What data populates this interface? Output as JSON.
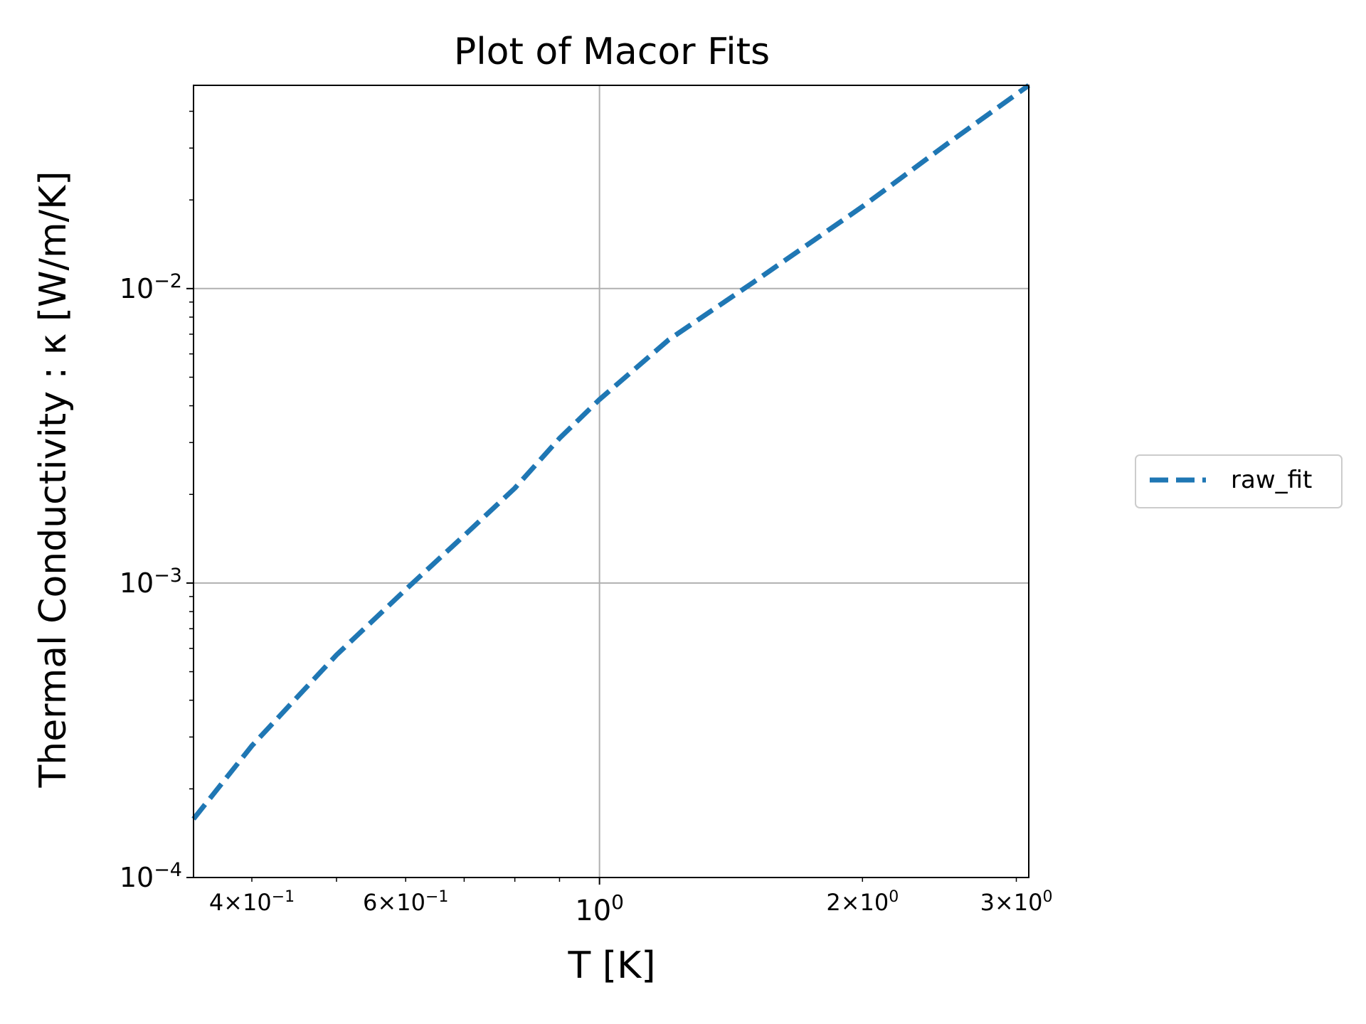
{
  "chart_data": {
    "type": "line",
    "title": "Plot of Macor Fits",
    "xlabel": "T [K]",
    "ylabel": "Thermal Conductivity : κ [W/m/K]",
    "xscale": "log",
    "yscale": "log",
    "xlim": [
      0.343,
      3.1
    ],
    "ylim": [
      0.0001,
      0.049
    ],
    "grid": true,
    "legend_position": "outside-right",
    "x_major_ticks": [
      {
        "value": 1,
        "base": "10",
        "exp": "0"
      }
    ],
    "x_minor_tick_labels": [
      {
        "value": 0.4,
        "mant": "4",
        "exp": "−1"
      },
      {
        "value": 0.6,
        "mant": "6",
        "exp": "−1"
      },
      {
        "value": 2,
        "mant": "2",
        "exp": "0"
      },
      {
        "value": 3,
        "mant": "3",
        "exp": "0"
      }
    ],
    "y_major_ticks": [
      {
        "value": 0.0001,
        "base": "10",
        "exp": "−4"
      },
      {
        "value": 0.001,
        "base": "10",
        "exp": "−3"
      },
      {
        "value": 0.01,
        "base": "10",
        "exp": "−2"
      }
    ],
    "series": [
      {
        "name": "raw_fit",
        "color": "#1f77b4",
        "style": "dashed",
        "x": [
          0.343,
          0.4,
          0.5,
          0.6,
          0.7,
          0.8,
          0.9,
          1.0,
          1.2,
          1.5,
          2.0,
          2.5,
          3.1
        ],
        "y": [
          0.000158,
          0.00028,
          0.00057,
          0.00095,
          0.00145,
          0.0021,
          0.0031,
          0.0042,
          0.0067,
          0.0105,
          0.019,
          0.031,
          0.049
        ]
      }
    ]
  }
}
